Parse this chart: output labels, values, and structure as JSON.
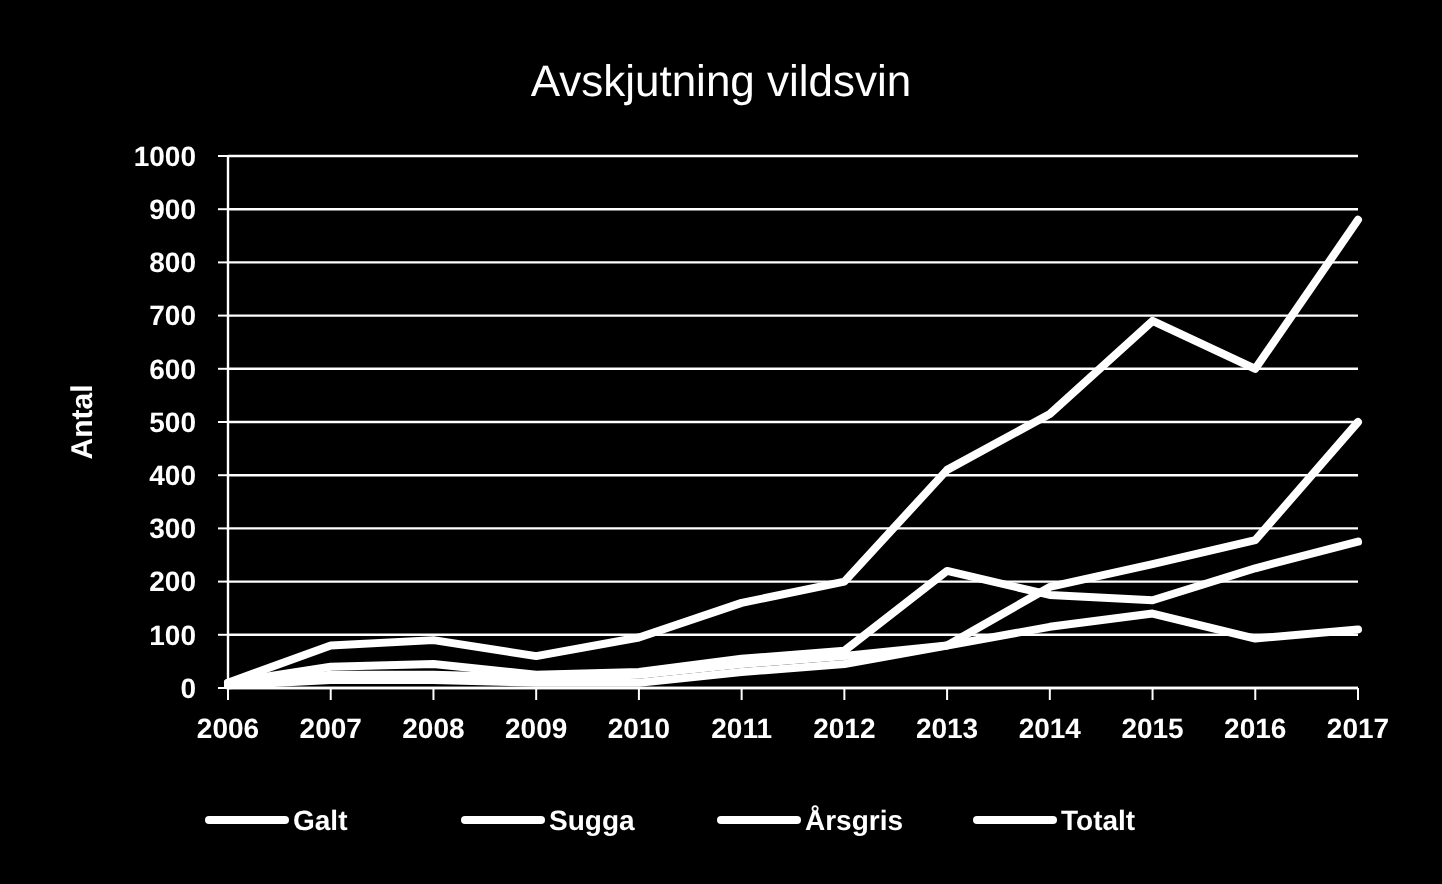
{
  "chart_data": {
    "type": "line",
    "title": "Avskjutning vildsvin",
    "ylabel": "Antal",
    "x": [
      2006,
      2007,
      2008,
      2009,
      2010,
      2011,
      2012,
      2013,
      2014,
      2015,
      2016,
      2017
    ],
    "xlim": [
      2006,
      2017
    ],
    "xticks": [
      2006,
      2007,
      2008,
      2009,
      2010,
      2011,
      2012,
      2013,
      2014,
      2015,
      2016,
      2017
    ],
    "ylim": [
      0,
      1000
    ],
    "yticks": [
      0,
      100,
      200,
      300,
      400,
      500,
      600,
      700,
      800,
      900,
      1000
    ],
    "grid": "y",
    "legend": "bottom",
    "marker": "none",
    "line_style": "solid",
    "series": [
      {
        "name": "Galt",
        "color": "#ffffff",
        "values": [
          10,
          40,
          45,
          25,
          30,
          55,
          70,
          220,
          175,
          165,
          225,
          275
        ]
      },
      {
        "name": "Sugga",
        "color": "#ffffff",
        "values": [
          5,
          15,
          15,
          10,
          10,
          30,
          45,
          80,
          115,
          140,
          93,
          110
        ]
      },
      {
        "name": "Årsgris",
        "color": "#ffffff",
        "values": [
          5,
          25,
          25,
          20,
          25,
          45,
          60,
          80,
          190,
          233,
          278,
          500
        ]
      },
      {
        "name": "Totalt",
        "color": "#ffffff",
        "values": [
          10,
          80,
          90,
          60,
          95,
          160,
          200,
          410,
          515,
          690,
          600,
          880
        ]
      }
    ]
  }
}
